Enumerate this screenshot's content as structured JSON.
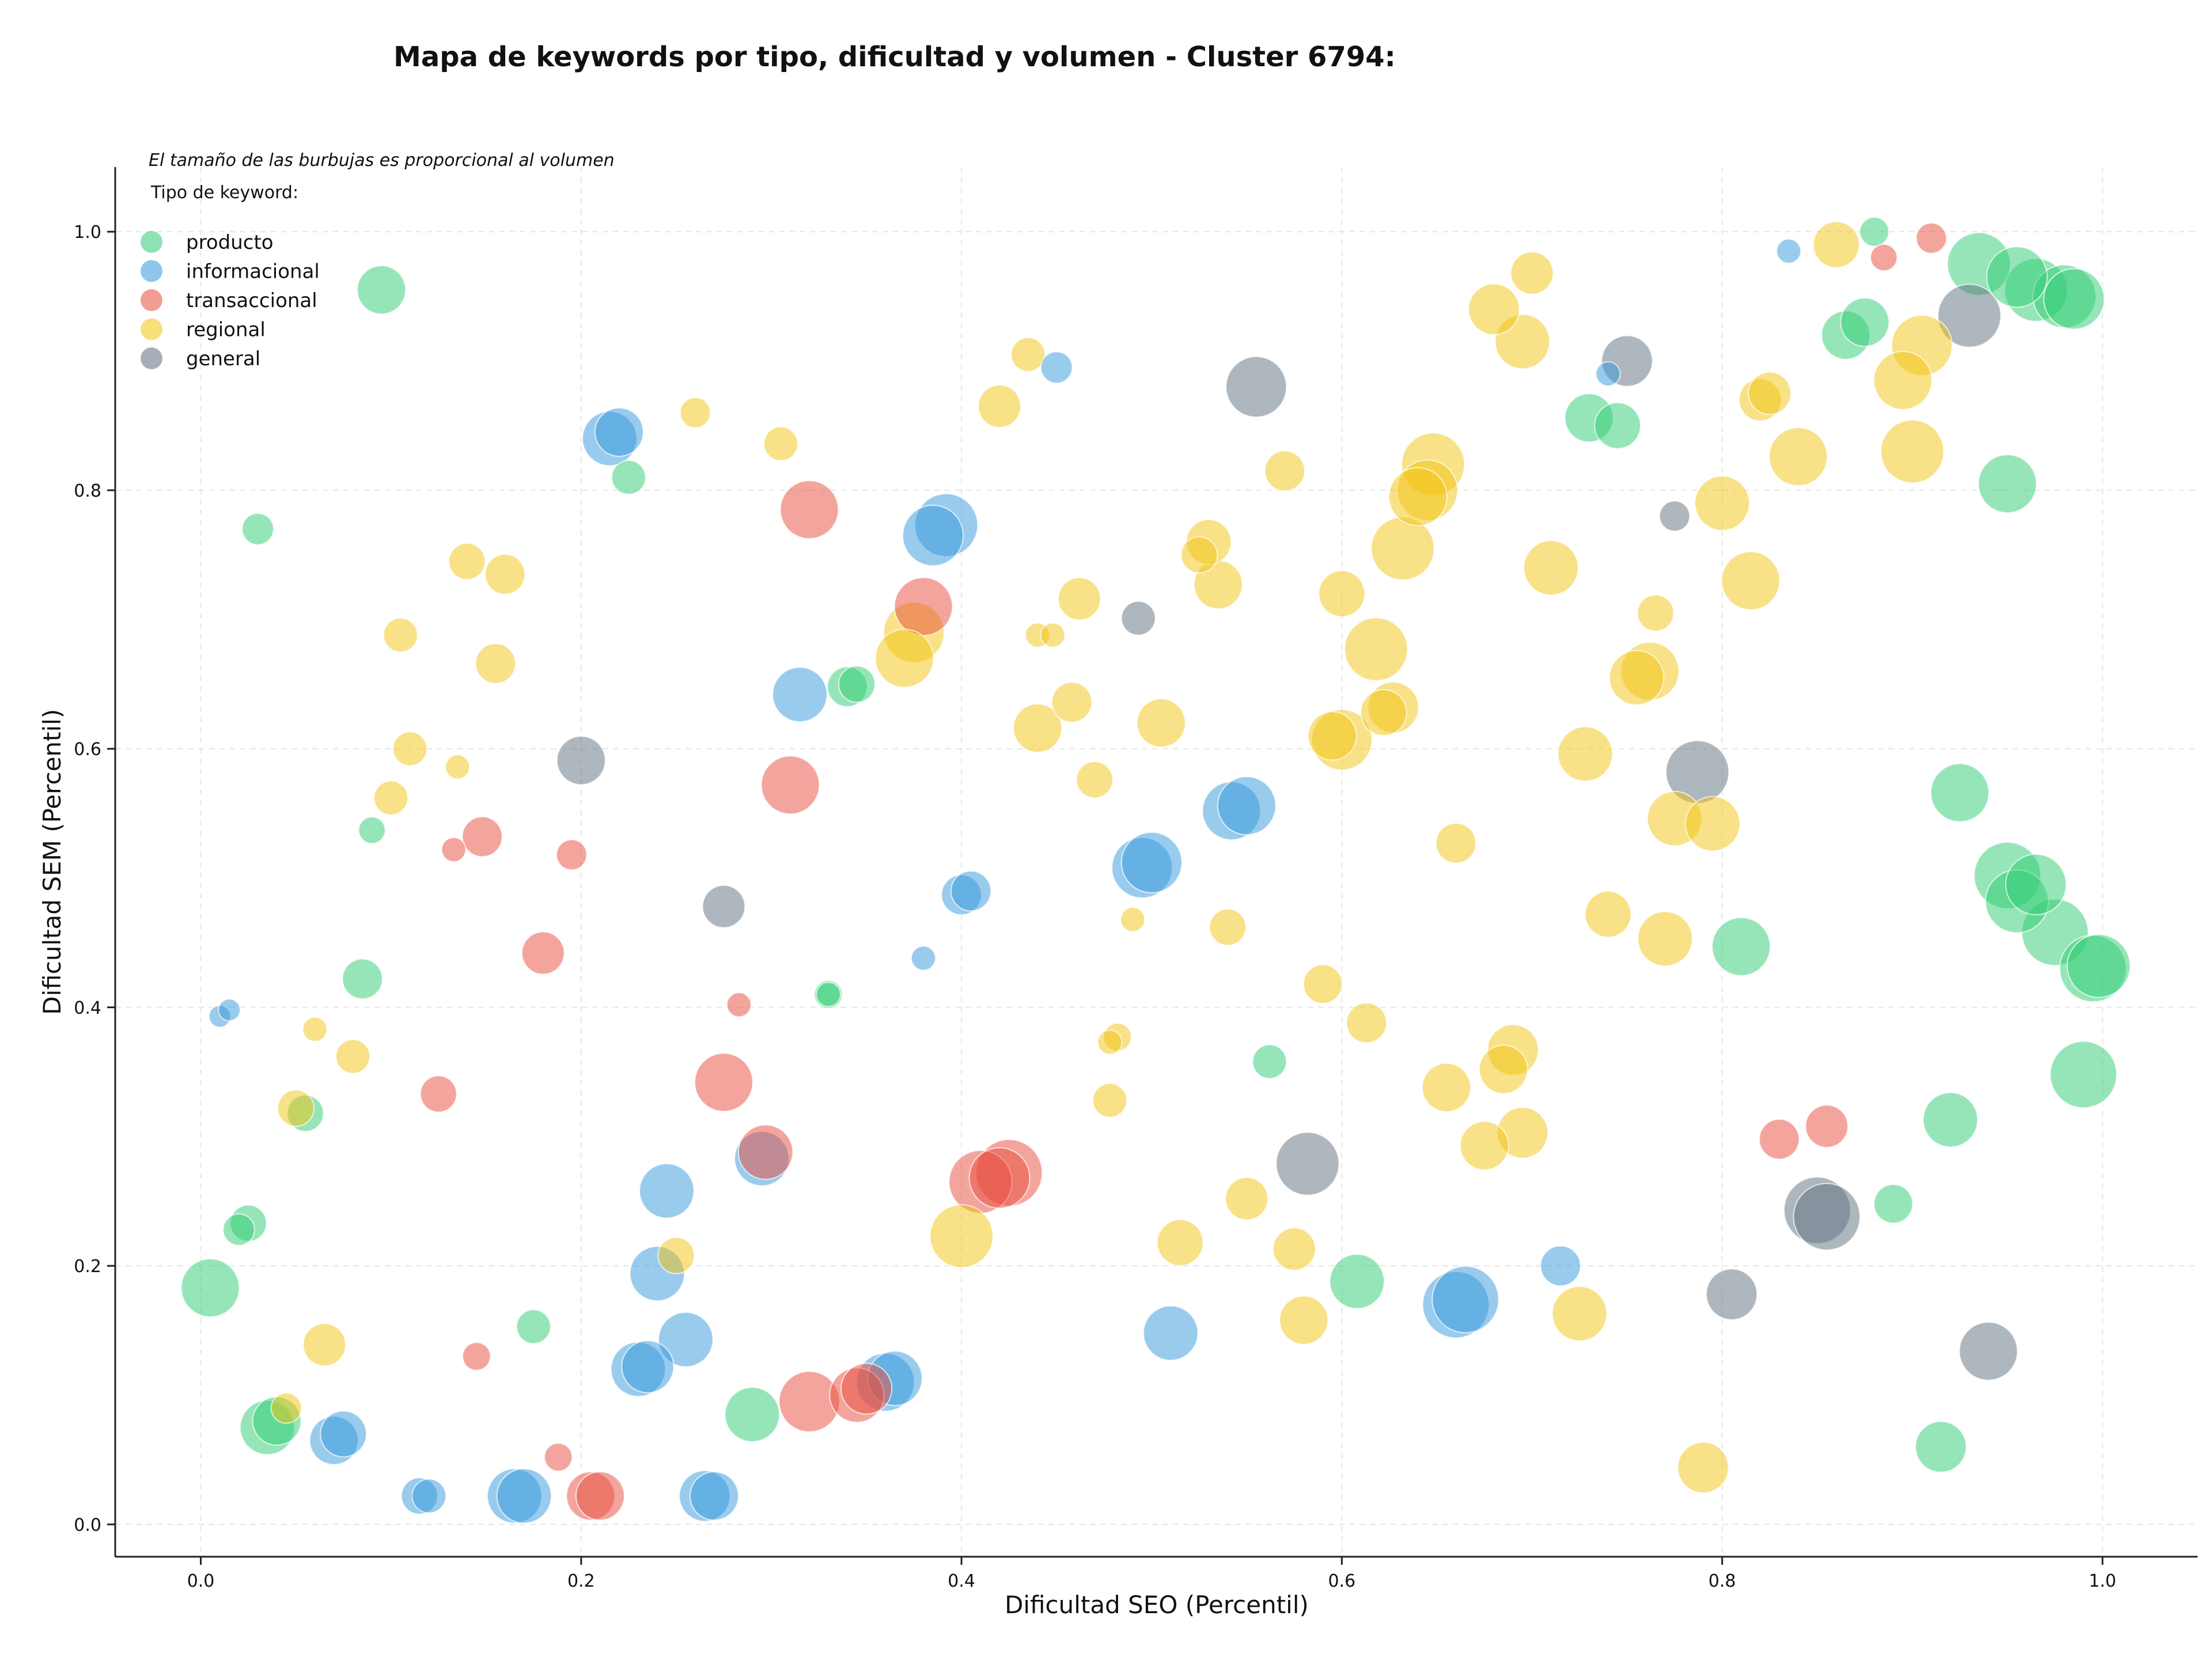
{
  "colors": {
    "producto": "#2ecc71",
    "informacional": "#3498db",
    "transaccional": "#e74c3c",
    "regional": "#f1c40f",
    "general": "#5d6d7e"
  },
  "chart_data": {
    "type": "scatter",
    "title": "Mapa de keywords por tipo, dificultad y volumen - Cluster 6794:",
    "xlabel": "Dificultad SEO (Percentil)",
    "ylabel": "Dificultad SEM (Percentil)",
    "xlim": [
      -0.045,
      1.05
    ],
    "ylim": [
      -0.025,
      1.05
    ],
    "xticks": [
      "0.0",
      "0.2",
      "0.4",
      "0.6",
      "0.8",
      "1.0"
    ],
    "yticks": [
      "0.0",
      "0.2",
      "0.4",
      "0.6",
      "0.8",
      "1.0"
    ],
    "grid": true,
    "note": "El tamaño de las burbujas es proporcional al volumen",
    "legend": {
      "title": "Tipo de keyword:",
      "position": "top-left",
      "entries": [
        "producto",
        "informacional",
        "transaccional",
        "regional",
        "general"
      ]
    },
    "series": [
      {
        "name": "producto",
        "points": [
          [
            0.095,
            0.955,
            40
          ],
          [
            0.03,
            0.77,
            26
          ],
          [
            0.225,
            0.81,
            28
          ],
          [
            0.09,
            0.537,
            22
          ],
          [
            0.085,
            0.422,
            33
          ],
          [
            0.055,
            0.318,
            30
          ],
          [
            0.025,
            0.233,
            30
          ],
          [
            0.02,
            0.228,
            26
          ],
          [
            0.005,
            0.183,
            48
          ],
          [
            0.035,
            0.075,
            45
          ],
          [
            0.04,
            0.08,
            40
          ],
          [
            0.175,
            0.153,
            28
          ],
          [
            0.29,
            0.085,
            45
          ],
          [
            0.34,
            0.648,
            33
          ],
          [
            0.345,
            0.65,
            30
          ],
          [
            0.33,
            0.41,
            23
          ],
          [
            0.33,
            0.41,
            20
          ],
          [
            0.562,
            0.358,
            28
          ],
          [
            0.608,
            0.188,
            45
          ],
          [
            0.73,
            0.856,
            40
          ],
          [
            0.745,
            0.85,
            38
          ],
          [
            0.865,
            0.92,
            40
          ],
          [
            0.875,
            0.93,
            40
          ],
          [
            0.88,
            1.0,
            24
          ],
          [
            0.935,
            0.975,
            52
          ],
          [
            0.955,
            0.965,
            50
          ],
          [
            0.965,
            0.955,
            52
          ],
          [
            0.98,
            0.95,
            52
          ],
          [
            0.985,
            0.948,
            50
          ],
          [
            0.95,
            0.805,
            48
          ],
          [
            0.925,
            0.566,
            48
          ],
          [
            0.95,
            0.502,
            55
          ],
          [
            0.965,
            0.495,
            50
          ],
          [
            0.955,
            0.482,
            52
          ],
          [
            0.975,
            0.458,
            55
          ],
          [
            0.995,
            0.43,
            55
          ],
          [
            0.998,
            0.432,
            52
          ],
          [
            0.99,
            0.348,
            55
          ],
          [
            0.92,
            0.313,
            45
          ],
          [
            0.89,
            0.248,
            32
          ],
          [
            0.915,
            0.06,
            42
          ],
          [
            0.81,
            0.447,
            48
          ]
        ]
      },
      {
        "name": "informacional",
        "points": [
          [
            0.215,
            0.84,
            45
          ],
          [
            0.22,
            0.845,
            40
          ],
          [
            0.01,
            0.393,
            18
          ],
          [
            0.015,
            0.398,
            18
          ],
          [
            0.115,
            0.022,
            30
          ],
          [
            0.12,
            0.022,
            28
          ],
          [
            0.165,
            0.022,
            45
          ],
          [
            0.17,
            0.022,
            45
          ],
          [
            0.265,
            0.022,
            42
          ],
          [
            0.27,
            0.022,
            40
          ],
          [
            0.07,
            0.065,
            40
          ],
          [
            0.075,
            0.07,
            38
          ],
          [
            0.23,
            0.12,
            45
          ],
          [
            0.235,
            0.122,
            43
          ],
          [
            0.24,
            0.194,
            45
          ],
          [
            0.245,
            0.258,
            45
          ],
          [
            0.255,
            0.143,
            45
          ],
          [
            0.295,
            0.283,
            45
          ],
          [
            0.315,
            0.642,
            45
          ],
          [
            0.36,
            0.11,
            48
          ],
          [
            0.365,
            0.113,
            45
          ],
          [
            0.385,
            0.765,
            50
          ],
          [
            0.392,
            0.773,
            52
          ],
          [
            0.38,
            0.438,
            20
          ],
          [
            0.4,
            0.487,
            33
          ],
          [
            0.405,
            0.49,
            33
          ],
          [
            0.45,
            0.895,
            26
          ],
          [
            0.495,
            0.508,
            50
          ],
          [
            0.5,
            0.512,
            50
          ],
          [
            0.51,
            0.148,
            45
          ],
          [
            0.542,
            0.552,
            48
          ],
          [
            0.55,
            0.556,
            48
          ],
          [
            0.66,
            0.17,
            55
          ],
          [
            0.665,
            0.174,
            55
          ],
          [
            0.715,
            0.2,
            33
          ],
          [
            0.74,
            0.89,
            20
          ],
          [
            0.835,
            0.985,
            20
          ]
        ]
      },
      {
        "name": "transaccional",
        "points": [
          [
            0.133,
            0.522,
            20
          ],
          [
            0.148,
            0.532,
            33
          ],
          [
            0.125,
            0.333,
            30
          ],
          [
            0.145,
            0.13,
            23
          ],
          [
            0.18,
            0.442,
            35
          ],
          [
            0.195,
            0.518,
            25
          ],
          [
            0.188,
            0.052,
            23
          ],
          [
            0.205,
            0.022,
            40
          ],
          [
            0.21,
            0.022,
            40
          ],
          [
            0.275,
            0.342,
            48
          ],
          [
            0.283,
            0.402,
            20
          ],
          [
            0.297,
            0.288,
            45
          ],
          [
            0.31,
            0.572,
            48
          ],
          [
            0.32,
            0.785,
            48
          ],
          [
            0.32,
            0.095,
            50
          ],
          [
            0.345,
            0.1,
            45
          ],
          [
            0.35,
            0.105,
            42
          ],
          [
            0.38,
            0.71,
            48
          ],
          [
            0.41,
            0.265,
            52
          ],
          [
            0.42,
            0.268,
            50
          ],
          [
            0.425,
            0.272,
            55
          ],
          [
            0.83,
            0.298,
            33
          ],
          [
            0.855,
            0.308,
            35
          ],
          [
            0.885,
            0.98,
            22
          ],
          [
            0.91,
            0.995,
            25
          ]
        ]
      },
      {
        "name": "regional",
        "points": [
          [
            0.105,
            0.688,
            28
          ],
          [
            0.14,
            0.745,
            30
          ],
          [
            0.155,
            0.666,
            33
          ],
          [
            0.16,
            0.735,
            33
          ],
          [
            0.11,
            0.6,
            28
          ],
          [
            0.135,
            0.586,
            20
          ],
          [
            0.1,
            0.562,
            28
          ],
          [
            0.06,
            0.383,
            20
          ],
          [
            0.08,
            0.362,
            28
          ],
          [
            0.05,
            0.322,
            30
          ],
          [
            0.065,
            0.139,
            35
          ],
          [
            0.045,
            0.09,
            25
          ],
          [
            0.25,
            0.208,
            30
          ],
          [
            0.26,
            0.86,
            25
          ],
          [
            0.305,
            0.836,
            28
          ],
          [
            0.37,
            0.67,
            48
          ],
          [
            0.375,
            0.69,
            50
          ],
          [
            0.4,
            0.223,
            52
          ],
          [
            0.42,
            0.865,
            35
          ],
          [
            0.435,
            0.905,
            28
          ],
          [
            0.44,
            0.688,
            20
          ],
          [
            0.448,
            0.688,
            20
          ],
          [
            0.44,
            0.616,
            40
          ],
          [
            0.458,
            0.636,
            33
          ],
          [
            0.462,
            0.716,
            35
          ],
          [
            0.47,
            0.576,
            30
          ],
          [
            0.478,
            0.373,
            20
          ],
          [
            0.478,
            0.328,
            28
          ],
          [
            0.482,
            0.377,
            23
          ],
          [
            0.49,
            0.468,
            20
          ],
          [
            0.505,
            0.62,
            40
          ],
          [
            0.515,
            0.218,
            38
          ],
          [
            0.525,
            0.75,
            30
          ],
          [
            0.53,
            0.76,
            37
          ],
          [
            0.535,
            0.727,
            40
          ],
          [
            0.54,
            0.462,
            30
          ],
          [
            0.55,
            0.252,
            35
          ],
          [
            0.57,
            0.815,
            33
          ],
          [
            0.575,
            0.213,
            35
          ],
          [
            0.58,
            0.158,
            40
          ],
          [
            0.59,
            0.418,
            32
          ],
          [
            0.6,
            0.72,
            38
          ],
          [
            0.595,
            0.61,
            40
          ],
          [
            0.6,
            0.607,
            50
          ],
          [
            0.613,
            0.388,
            33
          ],
          [
            0.618,
            0.677,
            52
          ],
          [
            0.622,
            0.628,
            38
          ],
          [
            0.627,
            0.632,
            42
          ],
          [
            0.632,
            0.755,
            52
          ],
          [
            0.64,
            0.795,
            48
          ],
          [
            0.645,
            0.8,
            50
          ],
          [
            0.648,
            0.82,
            52
          ],
          [
            0.66,
            0.527,
            33
          ],
          [
            0.655,
            0.338,
            40
          ],
          [
            0.675,
            0.293,
            40
          ],
          [
            0.68,
            0.94,
            42
          ],
          [
            0.685,
            0.352,
            40
          ],
          [
            0.69,
            0.367,
            42
          ],
          [
            0.695,
            0.303,
            42
          ],
          [
            0.695,
            0.915,
            45
          ],
          [
            0.7,
            0.968,
            35
          ],
          [
            0.71,
            0.74,
            45
          ],
          [
            0.725,
            0.163,
            45
          ],
          [
            0.728,
            0.596,
            45
          ],
          [
            0.74,
            0.472,
            38
          ],
          [
            0.755,
            0.655,
            45
          ],
          [
            0.762,
            0.66,
            48
          ],
          [
            0.765,
            0.705,
            30
          ],
          [
            0.77,
            0.453,
            45
          ],
          [
            0.775,
            0.546,
            45
          ],
          [
            0.795,
            0.542,
            45
          ],
          [
            0.79,
            0.044,
            42
          ],
          [
            0.8,
            0.79,
            45
          ],
          [
            0.815,
            0.73,
            48
          ],
          [
            0.82,
            0.87,
            35
          ],
          [
            0.825,
            0.875,
            35
          ],
          [
            0.84,
            0.826,
            48
          ],
          [
            0.86,
            0.99,
            38
          ],
          [
            0.895,
            0.885,
            48
          ],
          [
            0.9,
            0.83,
            52
          ],
          [
            0.905,
            0.912,
            50
          ]
        ]
      },
      {
        "name": "general",
        "points": [
          [
            0.2,
            0.591,
            40
          ],
          [
            0.275,
            0.478,
            35
          ],
          [
            0.493,
            0.701,
            28
          ],
          [
            0.555,
            0.88,
            50
          ],
          [
            0.582,
            0.279,
            52
          ],
          [
            0.75,
            0.9,
            42
          ],
          [
            0.775,
            0.78,
            25
          ],
          [
            0.787,
            0.582,
            52
          ],
          [
            0.805,
            0.178,
            42
          ],
          [
            0.85,
            0.243,
            55
          ],
          [
            0.855,
            0.238,
            55
          ],
          [
            0.93,
            0.935,
            52
          ],
          [
            0.94,
            0.134,
            48
          ]
        ]
      }
    ]
  }
}
